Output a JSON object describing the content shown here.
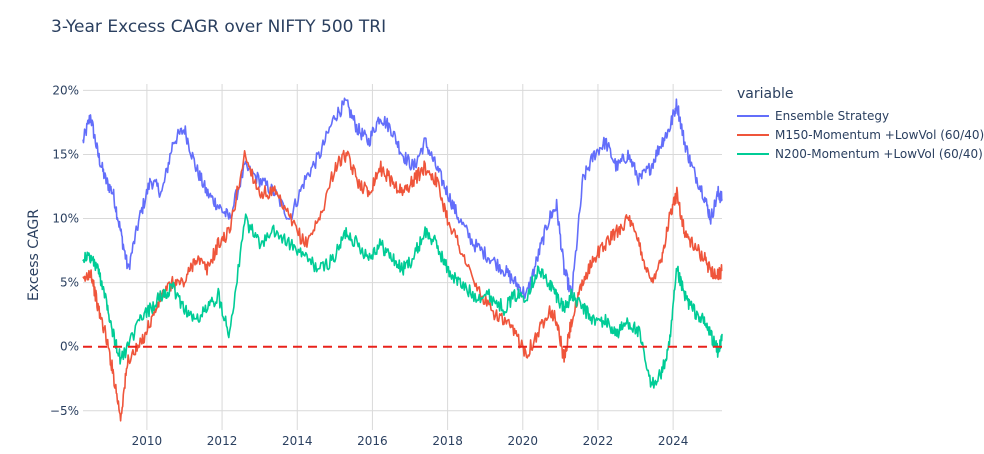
{
  "chart_data": {
    "type": "line",
    "title": "3-Year Excess CAGR over NIFTY 500 TRI",
    "xlabel": "",
    "ylabel": "Excess CAGR",
    "xlim": [
      2008.3,
      2025.3
    ],
    "ylim": [
      -6.5,
      20.5
    ],
    "x_ticks": [
      2010,
      2012,
      2014,
      2016,
      2018,
      2020,
      2022,
      2024
    ],
    "y_ticks": [
      -5,
      0,
      5,
      10,
      15,
      20
    ],
    "y_tick_labels": [
      "−5%",
      "0%",
      "5%",
      "10%",
      "15%",
      "20%"
    ],
    "reference_line": {
      "y": 0,
      "style": "dashed",
      "color": "#e8221b"
    },
    "legend_title": "variable",
    "series": [
      {
        "name": "Ensemble Strategy",
        "color": "#636efa",
        "x": [
          2008.3,
          2008.5,
          2008.7,
          2008.9,
          2009.1,
          2009.3,
          2009.5,
          2009.8,
          2010.1,
          2010.4,
          2010.7,
          2011.0,
          2011.3,
          2011.6,
          2011.9,
          2012.2,
          2012.6,
          2013.0,
          2013.4,
          2013.8,
          2014.2,
          2014.6,
          2015.0,
          2015.3,
          2015.6,
          2015.9,
          2016.2,
          2016.5,
          2016.8,
          2017.1,
          2017.4,
          2017.7,
          2018.0,
          2018.3,
          2018.7,
          2019.1,
          2019.5,
          2019.8,
          2020.1,
          2020.4,
          2020.7,
          2020.9,
          2021.1,
          2021.3,
          2021.6,
          2021.9,
          2022.2,
          2022.5,
          2022.8,
          2023.1,
          2023.4,
          2023.7,
          2023.9,
          2024.1,
          2024.3,
          2024.5,
          2024.8,
          2025.0,
          2025.2,
          2025.3
        ],
        "y": [
          16,
          18,
          15,
          13,
          12,
          9,
          6,
          10,
          13,
          12,
          16,
          17,
          14,
          12,
          11,
          10,
          14,
          13,
          12,
          10,
          13,
          15,
          18,
          19,
          17,
          16,
          18,
          17,
          15,
          14,
          16,
          14,
          12,
          10,
          8,
          7,
          6,
          5,
          4,
          7,
          10,
          11,
          6,
          4,
          13,
          15,
          16,
          14,
          15,
          13,
          14,
          16,
          17,
          19,
          16,
          14,
          12,
          10,
          12,
          11.5
        ]
      },
      {
        "name": "M150-Momentum +LowVol (60/40)",
        "color": "#ef553b",
        "x": [
          2008.3,
          2008.5,
          2008.7,
          2008.9,
          2009.1,
          2009.3,
          2009.5,
          2009.8,
          2010.1,
          2010.4,
          2010.7,
          2011.0,
          2011.3,
          2011.6,
          2011.9,
          2012.2,
          2012.6,
          2013.0,
          2013.4,
          2013.8,
          2014.2,
          2014.6,
          2015.0,
          2015.3,
          2015.6,
          2015.9,
          2016.2,
          2016.5,
          2016.8,
          2017.1,
          2017.4,
          2017.7,
          2018.0,
          2018.3,
          2018.7,
          2019.1,
          2019.5,
          2019.8,
          2020.1,
          2020.4,
          2020.7,
          2020.9,
          2021.1,
          2021.3,
          2021.6,
          2021.9,
          2022.2,
          2022.5,
          2022.8,
          2023.1,
          2023.4,
          2023.7,
          2023.9,
          2024.1,
          2024.3,
          2024.5,
          2024.8,
          2025.0,
          2025.2,
          2025.3
        ],
        "y": [
          5,
          6,
          3,
          1,
          -2,
          -5.5,
          -1,
          0,
          2,
          4,
          5,
          5,
          7,
          6,
          8,
          9,
          15,
          12,
          12,
          10,
          8,
          10,
          14,
          15,
          13,
          12,
          14,
          13,
          12,
          13,
          14,
          13,
          10,
          8,
          5,
          3,
          2,
          1,
          -0.5,
          1,
          3,
          2,
          -1,
          2,
          5,
          7,
          8,
          9,
          10,
          8,
          5,
          7,
          10,
          12,
          9,
          8,
          7,
          6,
          5.5,
          6
        ]
      },
      {
        "name": "N200-Momentum +LowVol (60/40)",
        "color": "#00cc96",
        "x": [
          2008.3,
          2008.5,
          2008.7,
          2008.9,
          2009.1,
          2009.3,
          2009.5,
          2009.8,
          2010.1,
          2010.4,
          2010.7,
          2011.0,
          2011.3,
          2011.6,
          2011.9,
          2012.2,
          2012.6,
          2013.0,
          2013.4,
          2013.8,
          2014.2,
          2014.6,
          2015.0,
          2015.3,
          2015.6,
          2015.9,
          2016.2,
          2016.5,
          2016.8,
          2017.1,
          2017.4,
          2017.7,
          2018.0,
          2018.3,
          2018.7,
          2019.1,
          2019.5,
          2019.8,
          2020.1,
          2020.4,
          2020.7,
          2020.9,
          2021.1,
          2021.3,
          2021.6,
          2021.9,
          2022.2,
          2022.5,
          2022.8,
          2023.1,
          2023.4,
          2023.7,
          2023.9,
          2024.1,
          2024.3,
          2024.5,
          2024.8,
          2025.0,
          2025.2,
          2025.3
        ],
        "y": [
          7,
          7,
          6,
          4,
          1,
          -1,
          0,
          2,
          3,
          4,
          4.5,
          3,
          2,
          3,
          4,
          1,
          10,
          8,
          9,
          8,
          7,
          6,
          7,
          9,
          8,
          7,
          8,
          7,
          6,
          7,
          9,
          8,
          6,
          5,
          4,
          4,
          3,
          4,
          4,
          6,
          5,
          4,
          3,
          4,
          3,
          2,
          2,
          1,
          2,
          1,
          -3,
          -2,
          0,
          6,
          4,
          3,
          2,
          1,
          -0.5,
          1
        ]
      }
    ]
  }
}
